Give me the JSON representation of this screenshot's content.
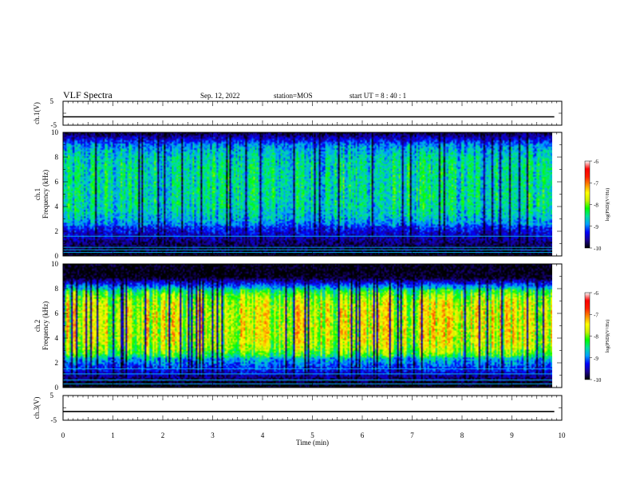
{
  "header": {
    "title": "VLF Spectra",
    "date": "Sep. 12, 2022",
    "station": "station=MOS",
    "start_ut": "start  UT =   8  : 40 : 1"
  },
  "colors": {
    "background": "#ffffff",
    "axis": "#000000",
    "colormap": [
      "#000000",
      "#1a0090",
      "#0000ff",
      "#00a0ff",
      "#00e0a0",
      "#00ff00",
      "#c8f000",
      "#ffff00",
      "#ff8c00",
      "#ff2000",
      "#ff0000",
      "#ffffff"
    ],
    "horizontal_lines": "#00c8ff"
  },
  "chart_data": [
    {
      "type": "line",
      "id": "ch1-voltage",
      "ylabel": "ch.1(V)",
      "ylim": [
        -5,
        5
      ],
      "y_ticks": [
        "5",
        "-5"
      ],
      "series": [
        {
          "x": [
            0,
            9.85
          ],
          "y": [
            -1.5,
            -1.5
          ]
        }
      ]
    },
    {
      "type": "heatmap",
      "id": "ch1-spectrogram",
      "ylabel": "ch.1\nFrequency (kHz)",
      "ylim": [
        0,
        10
      ],
      "y_ticks": [
        "0",
        "2",
        "4",
        "6",
        "8",
        "10"
      ],
      "xlim": [
        0,
        9.85
      ],
      "dominant_band_khz": [
        2.5,
        9.2
      ],
      "dominant_level_log_psd": -8.0,
      "horizontal_lines_khz": [
        0.3,
        0.5,
        0.7,
        1.6
      ],
      "colorbar": {
        "label": "log(PSD)(V²/Hz)",
        "range": [
          -10,
          -6
        ],
        "ticks": [
          "-6",
          "-7",
          "-8",
          "-9",
          "-10"
        ]
      }
    },
    {
      "type": "heatmap",
      "id": "ch2-spectrogram",
      "ylabel": "ch.2\nFrequency (kHz)",
      "ylim": [
        0,
        10
      ],
      "y_ticks": [
        "0",
        "2",
        "4",
        "6",
        "8",
        "10"
      ],
      "xlim": [
        0,
        9.85
      ],
      "dominant_band_khz": [
        2.5,
        8.0
      ],
      "dominant_level_log_psd": -6.8,
      "horizontal_lines_khz": [
        0.3,
        0.6,
        1.1,
        1.5
      ],
      "colorbar": {
        "label": "log(PSD)(V²/Hz)",
        "range": [
          -10,
          -6
        ],
        "ticks": [
          "-6",
          "-7",
          "-8",
          "-9",
          "-10"
        ]
      }
    },
    {
      "type": "line",
      "id": "ch3-voltage",
      "ylabel": "ch.3(V)",
      "ylim": [
        -5,
        5
      ],
      "y_ticks": [
        "5",
        "-5"
      ],
      "series": [
        {
          "x": [
            0,
            9.85
          ],
          "y": [
            -1.5,
            -1.5
          ]
        }
      ]
    }
  ],
  "x_axis": {
    "label": "Time  (min)",
    "range": [
      0,
      10
    ],
    "ticks": [
      "0",
      "1",
      "2",
      "3",
      "4",
      "5",
      "6",
      "7",
      "8",
      "9",
      "10"
    ]
  }
}
